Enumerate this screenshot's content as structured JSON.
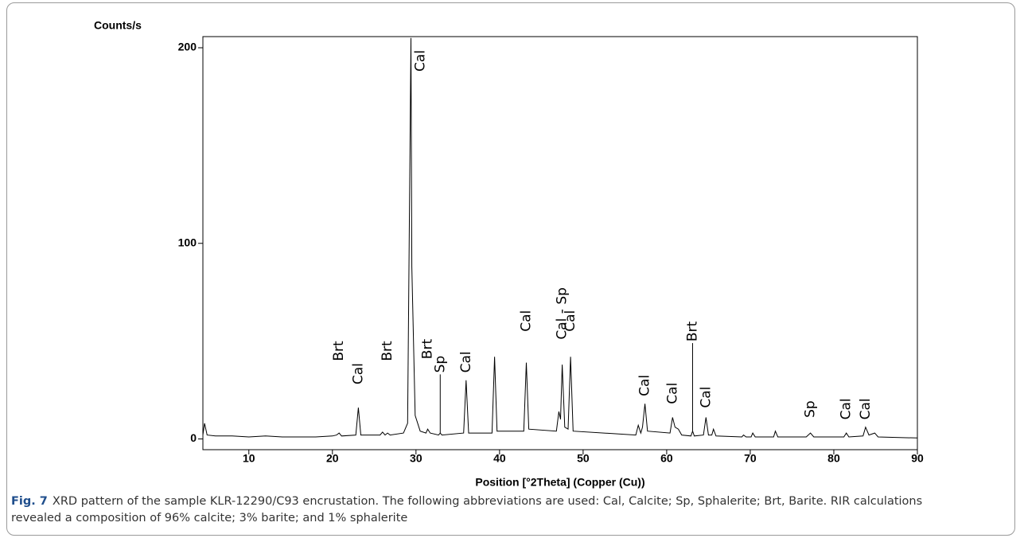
{
  "chart_data": {
    "type": "line",
    "y_label": "Counts/s",
    "x_label": "Position [°2Theta] (Copper (Cu))",
    "color": "#000000",
    "xlim": [
      4.5,
      90
    ],
    "xticks": [
      10,
      20,
      30,
      40,
      50,
      60,
      70,
      80,
      90
    ],
    "ylim": [
      -5.5,
      205.7
    ],
    "yticks": [
      0,
      100,
      200
    ],
    "x": [
      4.5,
      4.7,
      5.0,
      6,
      8,
      10,
      12,
      14,
      16,
      18,
      20,
      20.5,
      20.8,
      21.1,
      22.8,
      23.1,
      23.4,
      25.7,
      26.0,
      26.3,
      26.6,
      26.9,
      28.5,
      29.0,
      29.4,
      29.5,
      29.9,
      30.5,
      31.2,
      31.4,
      31.7,
      32.7,
      32.9,
      33.1,
      35.7,
      36.0,
      36.3,
      39.1,
      39.4,
      39.7,
      42.9,
      43.2,
      43.5,
      46.8,
      47.1,
      47.3,
      47.5,
      47.8,
      48.2,
      48.5,
      48.8,
      56.3,
      56.6,
      56.9,
      57.1,
      57.4,
      57.7,
      60.4,
      60.7,
      61.0,
      61.4,
      61.8,
      62.9,
      63.1,
      63.3,
      64.4,
      64.7,
      65.0,
      65.4,
      65.6,
      65.9,
      69.0,
      69.2,
      69.5,
      70.1,
      70.3,
      70.6,
      72.8,
      73.0,
      73.3,
      76.7,
      77.2,
      77.6,
      81.2,
      81.5,
      81.8,
      83.5,
      83.8,
      84.2,
      84.9,
      85.3,
      90
    ],
    "values": [
      2,
      8,
      2,
      1.5,
      1.5,
      1,
      1.5,
      1,
      1,
      1,
      1.5,
      2,
      3,
      1.5,
      2,
      16,
      2,
      2,
      3.5,
      2,
      3,
      2,
      3,
      8,
      205,
      88,
      12,
      4,
      3,
      5,
      3,
      2,
      3,
      2,
      3,
      30,
      3,
      3,
      42,
      4,
      4,
      39,
      5,
      4,
      14,
      10,
      38,
      6,
      5,
      42,
      4,
      2,
      7,
      3,
      6,
      18,
      4,
      3,
      11,
      6,
      5,
      2,
      1.5,
      4,
      1.5,
      2,
      11,
      2,
      2,
      5,
      1.5,
      1,
      2,
      1,
      1,
      3,
      1,
      1,
      4,
      1,
      1,
      3,
      1,
      1,
      3,
      1,
      1.5,
      6,
      2,
      3,
      1,
      0.5
    ],
    "annotations": [
      {
        "text": "Brt",
        "x": 20.8,
        "y": 39
      },
      {
        "text": "Cal",
        "x": 23.1,
        "y": 27
      },
      {
        "text": "Brt",
        "x": 26.6,
        "y": 39
      },
      {
        "text": "Cal",
        "x": 29.4,
        "y": 187
      },
      {
        "text": "Brt",
        "x": 31.4,
        "y": 40
      },
      {
        "text": "Sp",
        "x": 32.9,
        "y": 33,
        "stick": true
      },
      {
        "text": "Cal",
        "x": 36.0,
        "y": 33
      },
      {
        "text": "Cal",
        "x": 43.2,
        "y": 54
      },
      {
        "text": "Cal - Sp",
        "x": 47.5,
        "y": 50
      },
      {
        "text": "Cal",
        "x": 48.5,
        "y": 54
      },
      {
        "text": "Cal",
        "x": 57.4,
        "y": 21
      },
      {
        "text": "Cal",
        "x": 60.7,
        "y": 17
      },
      {
        "text": "Brt",
        "x": 63.1,
        "y": 49,
        "stick": true
      },
      {
        "text": "Cal",
        "x": 64.7,
        "y": 15
      },
      {
        "text": "Sp",
        "x": 77.2,
        "y": 10
      },
      {
        "text": "Cal",
        "x": 81.5,
        "y": 9
      },
      {
        "text": "Cal",
        "x": 83.8,
        "y": 9
      }
    ]
  },
  "caption": {
    "label": "Fig. 7",
    "text": "XRD pattern of the sample KLR-12290/C93 encrustation. The following abbreviations are used: Cal, Calcite; Sp, Sphalerite; Brt, Barite. RIR calculations revealed a composition of 96% calcite; 3% barite; and 1% sphalerite"
  }
}
